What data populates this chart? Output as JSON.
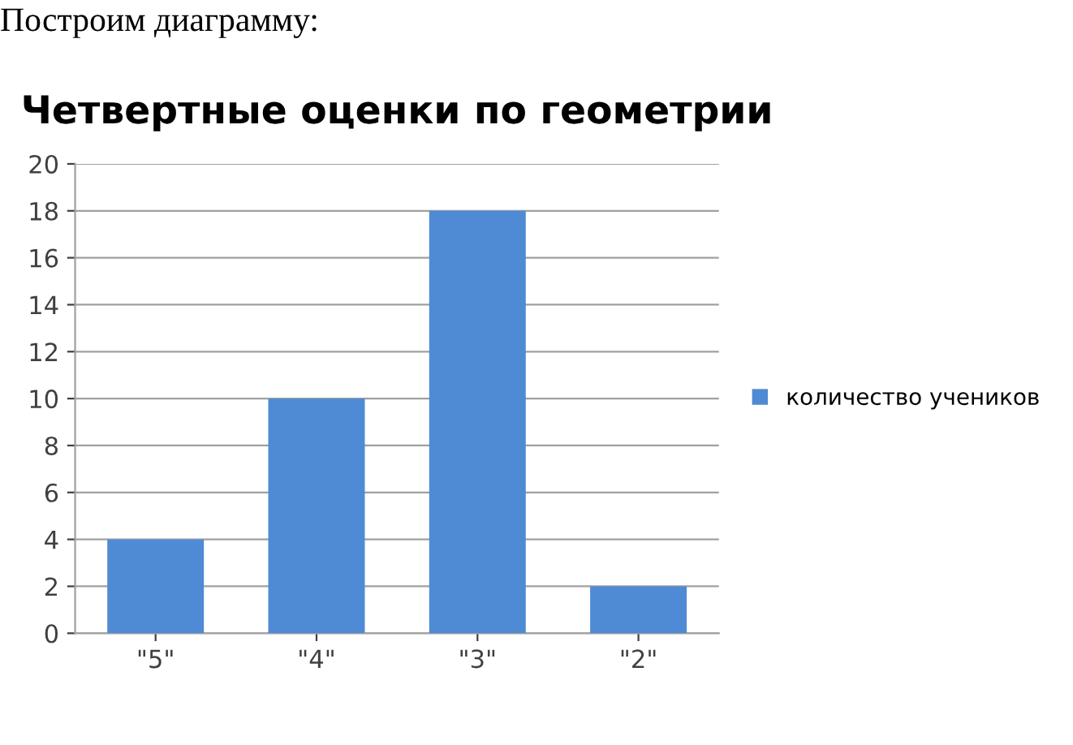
{
  "chart_data": {
    "type": "bar",
    "title": "Четвертные оценки по геометрии",
    "annotations": [
      "Построим диаграмму:"
    ],
    "categories": [
      "\"5\"",
      "\"4\"",
      "\"3\"",
      "\"2\""
    ],
    "series": [
      {
        "name": "количество учеников",
        "color": "#4f8ad4",
        "values": [
          4,
          10,
          18,
          2
        ]
      }
    ],
    "ylim": [
      0,
      20
    ],
    "yticks": [
      0,
      2,
      4,
      6,
      8,
      10,
      12,
      14,
      16,
      18,
      20
    ],
    "grid": "y",
    "legend": "right"
  }
}
